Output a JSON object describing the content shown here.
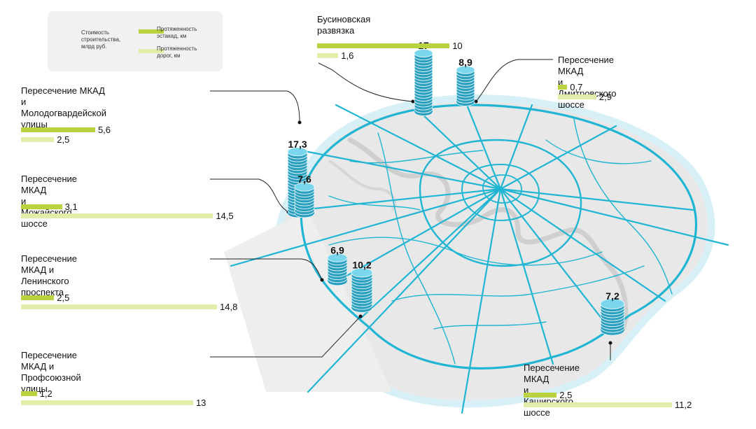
{
  "legend": {
    "cost": "Стоимость\nстроительства,\nмлрд руб.",
    "overpass": "Протяженность\nэстакад, км",
    "roads": "Протяженность\nдорог, км"
  },
  "colors": {
    "overpass": "#b9d23f",
    "roads": "#e3eca9",
    "road_network": "#1fb5d3",
    "coin": "#36b9d8",
    "city_area": "#e8e8e8",
    "river": "#cfcfcf"
  },
  "scale_km_max": 14.8,
  "junctions": [
    {
      "id": "businovskaya",
      "name": "Бусиновская\nразвязка",
      "cost": "17",
      "overpass_km": 10,
      "road_km": 1.6,
      "overpass_label": "10",
      "road_label": "1,6"
    },
    {
      "id": "dmitrovskoe",
      "name": "Пересечение МКАД\nи Дмитровского шоссе",
      "cost": "8,9",
      "overpass_km": 0.7,
      "road_km": 2.9,
      "overpass_label": "0,7",
      "road_label": "2,9"
    },
    {
      "id": "molodogvardeyskaya",
      "name": "Пересечение МКАД\nи Молодогвардейской\nулицы",
      "cost": "17,3",
      "overpass_km": 5.6,
      "road_km": 2.5,
      "overpass_label": "5,6",
      "road_label": "2,5"
    },
    {
      "id": "mozhayskoe",
      "name": "Пересечение МКАД\nи Можайского шоссе",
      "cost": "7,6",
      "overpass_km": 3.1,
      "road_km": 14.5,
      "overpass_label": "3,1",
      "road_label": "14,5"
    },
    {
      "id": "leninsky",
      "name": "Пересечение\nМКАД и Ленинского\nпроспекта",
      "cost": "6,9",
      "overpass_km": 2.5,
      "road_km": 14.8,
      "overpass_label": "2,5",
      "road_label": "14,8"
    },
    {
      "id": "profsoyuznaya",
      "name": "Пересечение\nМКАД и Профсоюзной\nулицы",
      "cost": "10,2",
      "overpass_km": 1.2,
      "road_km": 13,
      "overpass_label": "1,2",
      "road_label": "13"
    },
    {
      "id": "kashirskoe",
      "name": "Пересечение МКАД\nи Каширского шоссе",
      "cost": "7,2",
      "overpass_km": 2.5,
      "road_km": 11.2,
      "overpass_label": "2,5",
      "road_label": "11,2"
    }
  ]
}
